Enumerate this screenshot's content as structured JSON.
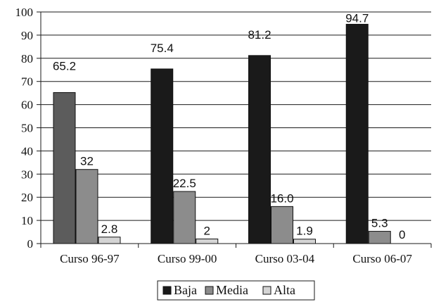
{
  "chart_data": {
    "type": "bar",
    "categories": [
      "Curso 96-97",
      "Curso 99-00",
      "Curso 03-04",
      "Curso 06-07"
    ],
    "series": [
      {
        "name": "Baja",
        "values": [
          65.2,
          75.4,
          81.2,
          94.7
        ],
        "color": "#1a1a1a"
      },
      {
        "name": "Media",
        "values": [
          32,
          22.5,
          16.0,
          5.3
        ],
        "color": "#8c8c8c"
      },
      {
        "name": "Alta",
        "values": [
          2.8,
          2,
          1.9,
          0
        ],
        "color": "#d4d4d4"
      }
    ],
    "data_labels": [
      [
        "65.2",
        "75.4",
        "81.2",
        "94.7"
      ],
      [
        "32",
        "22.5",
        "16.0",
        "5.3"
      ],
      [
        "2.8",
        "2",
        "1.9",
        "0"
      ]
    ],
    "first_bar_color": "#5c5c5c",
    "ylim": [
      0,
      100
    ],
    "yticks": [
      0,
      10,
      20,
      30,
      40,
      50,
      60,
      70,
      80,
      90,
      100
    ],
    "grid": true,
    "legend_position": "bottom-center",
    "title": "",
    "xlabel": "",
    "ylabel": ""
  }
}
